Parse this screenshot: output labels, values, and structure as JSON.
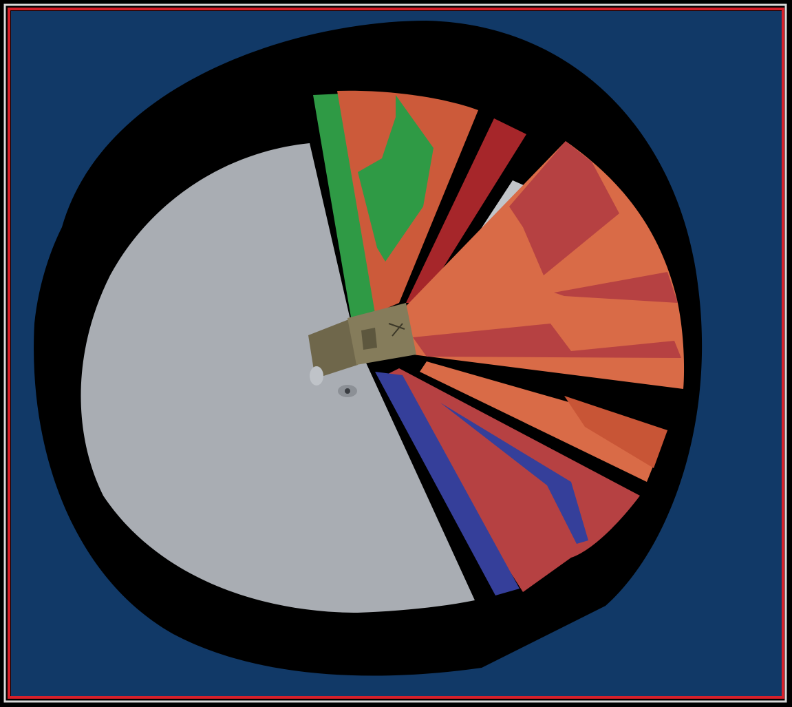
{
  "scene": {
    "colors": {
      "outer_background": "#000000",
      "frame_light": "#d9d9d9",
      "frame_red": "#d8202a",
      "viewport_background": "#113967",
      "shadow_ring": "#000000",
      "grey_region": "#a9adb3",
      "green_region": "#2f9a45",
      "orange_region": "#cc5a3a",
      "dark_red_region": "#a6262a",
      "red_region": "#b64142",
      "light_orange_region": "#d96b47",
      "blue_region": "#353f9a",
      "robot_body": "#7f7656",
      "robot_wheel": "#bfc3c8"
    },
    "icons": {
      "robot": "robot-vehicle-icon"
    }
  }
}
